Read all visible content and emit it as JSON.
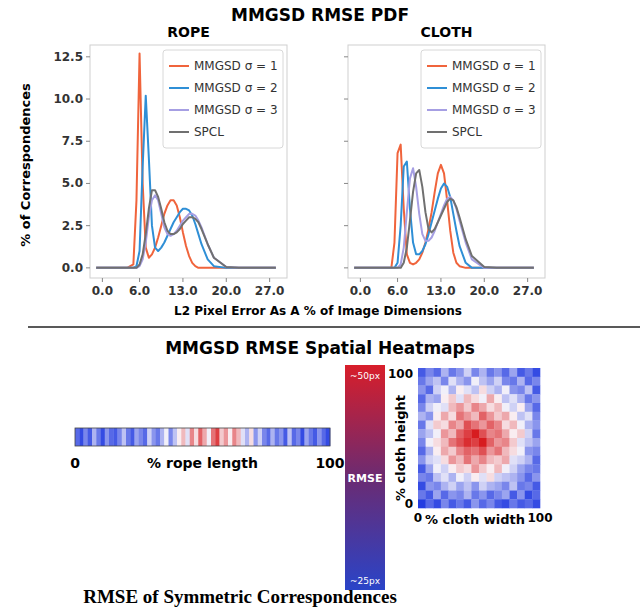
{
  "figure": {
    "title": "MMGSD RMSE PDF",
    "x_label": "L2 Pixel Error As A % of Image Dimensions",
    "y_label": "% of Correspondences",
    "heatmap_title": "MMGSD RMSE Spatial Heatmaps",
    "caption": "RMSE of Symmetric Correspondences",
    "colorbar": {
      "label": "RMSE",
      "range": [
        25,
        50
      ],
      "ticks": [
        {
          "value": 25,
          "label": "~25px"
        },
        {
          "value": 50,
          "label": "~50px"
        }
      ]
    }
  },
  "chart_data": [
    {
      "type": "line",
      "title": "ROPE",
      "legend": "upper right",
      "grid": false,
      "xlim": [
        -2,
        29.8
      ],
      "ylim": [
        -0.6,
        13.2
      ],
      "xticks": [
        {
          "value": 0,
          "label": "0.0"
        },
        {
          "value": 6,
          "label": "6.0"
        },
        {
          "value": 13,
          "label": "13.0"
        },
        {
          "value": 20,
          "label": "20.0"
        },
        {
          "value": 27,
          "label": "27.0"
        }
      ],
      "yticks": [
        {
          "value": 0,
          "label": "0.0"
        },
        2.5,
        {
          "value": 5,
          "label": "5.0"
        },
        7.5,
        {
          "value": 10,
          "label": "10.0"
        },
        12.5
      ],
      "x": [
        -1,
        0,
        2,
        4,
        5,
        5.5,
        6,
        6.5,
        7,
        7.5,
        8,
        8.5,
        9,
        9.5,
        10,
        10.5,
        11,
        11.5,
        12,
        12.5,
        13,
        13.5,
        14,
        14.5,
        15,
        15.5,
        16,
        17,
        18,
        20,
        22,
        24,
        27,
        28
      ],
      "series": [
        {
          "name": "MMGSD σ = 1",
          "color": "#f0643c",
          "values": [
            0,
            0,
            0,
            0,
            0.2,
            4,
            12.7,
            5,
            1.2,
            0.6,
            0.8,
            1.2,
            1.8,
            2.5,
            3.2,
            3.7,
            4.0,
            4.0,
            3.7,
            3.0,
            2.1,
            1.3,
            0.7,
            0.3,
            0.1,
            0,
            0,
            0,
            0,
            0,
            0,
            0,
            0,
            0
          ]
        },
        {
          "name": "MMGSD σ = 2",
          "color": "#2f8fd6",
          "values": [
            0,
            0,
            0,
            0,
            0,
            0.1,
            1,
            6,
            10.2,
            6.5,
            2.5,
            1.2,
            1.0,
            1.2,
            1.5,
            1.9,
            2.3,
            2.7,
            3.0,
            3.3,
            3.5,
            3.5,
            3.4,
            3.1,
            2.6,
            2.0,
            1.4,
            0.5,
            0.1,
            0,
            0,
            0,
            0,
            0
          ]
        },
        {
          "name": "MMGSD σ = 3",
          "color": "#a69fe3",
          "values": [
            0,
            0,
            0,
            0,
            0,
            0,
            0.1,
            0.5,
            1.5,
            3,
            4,
            4.3,
            4.0,
            3.2,
            2.4,
            2.0,
            1.9,
            2.0,
            2.2,
            2.5,
            2.8,
            3.0,
            3.2,
            3.2,
            3.1,
            2.8,
            2.4,
            1.4,
            0.6,
            0.05,
            0,
            0,
            0,
            0
          ]
        },
        {
          "name": "SPCL",
          "color": "#707070",
          "values": [
            0,
            0,
            0,
            0,
            0,
            0,
            0.2,
            0.8,
            2,
            3.5,
            4.6,
            4.6,
            4.2,
            3.5,
            2.7,
            2.2,
            2.0,
            2.0,
            2.1,
            2.3,
            2.6,
            2.8,
            3.0,
            3.0,
            2.9,
            2.7,
            2.3,
            1.4,
            0.6,
            0.05,
            0,
            0,
            0,
            0
          ]
        }
      ]
    },
    {
      "type": "line",
      "title": "CLOTH",
      "legend": "upper right",
      "grid": false,
      "tick_labels": "x",
      "xlim": [
        -2,
        29.8
      ],
      "ylim": [
        -0.6,
        13.2
      ],
      "xticks": [
        {
          "value": 0,
          "label": "0.0"
        },
        {
          "value": 6,
          "label": "6.0"
        },
        {
          "value": 13,
          "label": "13.0"
        },
        {
          "value": 20,
          "label": "20.0"
        },
        {
          "value": 27,
          "label": "27.0"
        }
      ],
      "yticks": [
        0,
        2.5,
        5,
        7.5,
        10,
        12.5
      ],
      "x": [
        -1,
        0,
        2,
        4,
        5,
        5.5,
        6,
        6.5,
        7,
        7.5,
        8,
        8.5,
        9,
        9.5,
        10,
        10.5,
        11,
        11.5,
        12,
        12.5,
        13,
        13.5,
        14,
        14.5,
        15,
        15.5,
        16,
        17,
        18,
        20,
        22,
        24,
        27,
        28
      ],
      "series": [
        {
          "name": "MMGSD σ = 1",
          "color": "#f0643c",
          "values": [
            0,
            0,
            0,
            0,
            0,
            1.5,
            6.8,
            7.3,
            3.5,
            0.8,
            0.3,
            0.2,
            0.3,
            0.5,
            0.9,
            1.5,
            2.3,
            3.3,
            4.5,
            5.6,
            6.1,
            5.6,
            4.0,
            2.2,
            0.9,
            0.3,
            0.1,
            0,
            0,
            0,
            0,
            0,
            0,
            0
          ]
        },
        {
          "name": "MMGSD σ = 2",
          "color": "#2f8fd6",
          "values": [
            0,
            0,
            0,
            0,
            0,
            0,
            0.3,
            2.5,
            6.0,
            6.3,
            3.5,
            1.5,
            0.8,
            0.8,
            1.0,
            1.4,
            2.0,
            2.7,
            3.4,
            4.1,
            4.7,
            5.0,
            4.8,
            4.2,
            3.2,
            2.2,
            1.3,
            0.3,
            0,
            0,
            0,
            0,
            0,
            0
          ]
        },
        {
          "name": "MMGSD σ = 3",
          "color": "#a69fe3",
          "values": [
            0,
            0,
            0,
            0,
            0,
            0,
            0,
            0.2,
            1.2,
            3.3,
            5.3,
            5.9,
            4.8,
            3.2,
            2.0,
            1.6,
            1.6,
            1.8,
            2.2,
            2.7,
            3.2,
            3.7,
            4.1,
            4.2,
            4.0,
            3.5,
            2.8,
            1.5,
            0.5,
            0,
            0,
            0,
            0,
            0
          ]
        },
        {
          "name": "SPCL",
          "color": "#707070",
          "values": [
            0,
            0,
            0,
            0,
            0,
            0,
            0,
            0,
            0.3,
            1.2,
            2.8,
            4.5,
            5.6,
            5.8,
            4.8,
            3.3,
            2.3,
            2.1,
            2.3,
            2.7,
            3.1,
            3.5,
            3.9,
            4.1,
            4.0,
            3.6,
            3.0,
            1.7,
            0.7,
            0.05,
            0,
            0,
            0,
            0
          ]
        }
      ]
    },
    {
      "type": "heatmap",
      "x_label": "% rope length",
      "xlim": [
        0,
        100
      ],
      "xticks": [
        0,
        100
      ],
      "values": [
        28,
        26,
        30,
        27,
        33,
        29,
        26,
        31,
        28,
        27,
        30,
        34,
        29,
        27,
        32,
        30,
        28,
        35,
        31,
        29,
        33,
        37,
        30,
        34,
        38,
        41,
        36,
        44,
        39,
        46,
        42,
        37,
        45,
        48,
        40,
        43,
        38,
        44,
        41,
        36,
        33,
        39,
        31,
        35,
        30,
        28,
        33,
        29,
        31,
        27,
        34,
        28,
        30,
        26,
        32,
        29,
        27,
        31,
        28,
        26
      ]
    },
    {
      "type": "heatmap",
      "x_label": "% cloth width",
      "y_label": "% cloth height",
      "xlim": [
        0,
        100
      ],
      "ylim": [
        0,
        100
      ],
      "xticks": [
        0,
        100
      ],
      "yticks": [
        0,
        100
      ],
      "cells": [
        [
          27,
          30,
          28,
          33,
          29,
          31,
          35,
          30,
          33,
          29,
          31,
          28,
          32,
          27,
          29,
          26
        ],
        [
          29,
          32,
          34,
          30,
          36,
          33,
          31,
          37,
          34,
          32,
          35,
          30,
          29,
          33,
          28,
          30
        ],
        [
          31,
          28,
          35,
          37,
          33,
          38,
          36,
          34,
          39,
          35,
          33,
          37,
          31,
          30,
          34,
          27
        ],
        [
          28,
          33,
          32,
          38,
          40,
          36,
          41,
          39,
          37,
          42,
          38,
          34,
          36,
          33,
          29,
          31
        ],
        [
          30,
          35,
          37,
          36,
          41,
          43,
          40,
          44,
          42,
          39,
          41,
          37,
          35,
          38,
          32,
          28
        ],
        [
          33,
          31,
          38,
          42,
          39,
          45,
          43,
          41,
          46,
          43,
          40,
          42,
          38,
          34,
          36,
          30
        ],
        [
          29,
          36,
          40,
          39,
          44,
          42,
          47,
          45,
          43,
          46,
          44,
          39,
          41,
          37,
          33,
          31
        ],
        [
          32,
          34,
          37,
          43,
          41,
          46,
          48,
          50,
          47,
          44,
          45,
          42,
          38,
          40,
          35,
          29
        ],
        [
          30,
          37,
          39,
          41,
          45,
          47,
          49,
          48,
          50,
          46,
          43,
          44,
          40,
          36,
          34,
          32
        ],
        [
          28,
          33,
          38,
          42,
          40,
          44,
          46,
          45,
          47,
          43,
          45,
          41,
          39,
          37,
          31,
          30
        ],
        [
          31,
          35,
          36,
          39,
          43,
          41,
          45,
          42,
          44,
          41,
          40,
          42,
          36,
          35,
          33,
          28
        ],
        [
          27,
          32,
          37,
          35,
          38,
          40,
          39,
          43,
          40,
          38,
          41,
          37,
          35,
          32,
          30,
          29
        ],
        [
          30,
          29,
          34,
          36,
          33,
          37,
          35,
          38,
          36,
          39,
          35,
          34,
          33,
          31,
          28,
          31
        ],
        [
          26,
          31,
          30,
          33,
          35,
          32,
          34,
          31,
          35,
          33,
          32,
          30,
          34,
          29,
          30,
          27
        ],
        [
          29,
          27,
          32,
          28,
          31,
          30,
          33,
          29,
          31,
          28,
          30,
          32,
          27,
          31,
          26,
          28
        ],
        [
          25,
          28,
          26,
          30,
          27,
          29,
          27,
          31,
          28,
          30,
          27,
          26,
          29,
          27,
          28,
          26
        ]
      ]
    }
  ]
}
